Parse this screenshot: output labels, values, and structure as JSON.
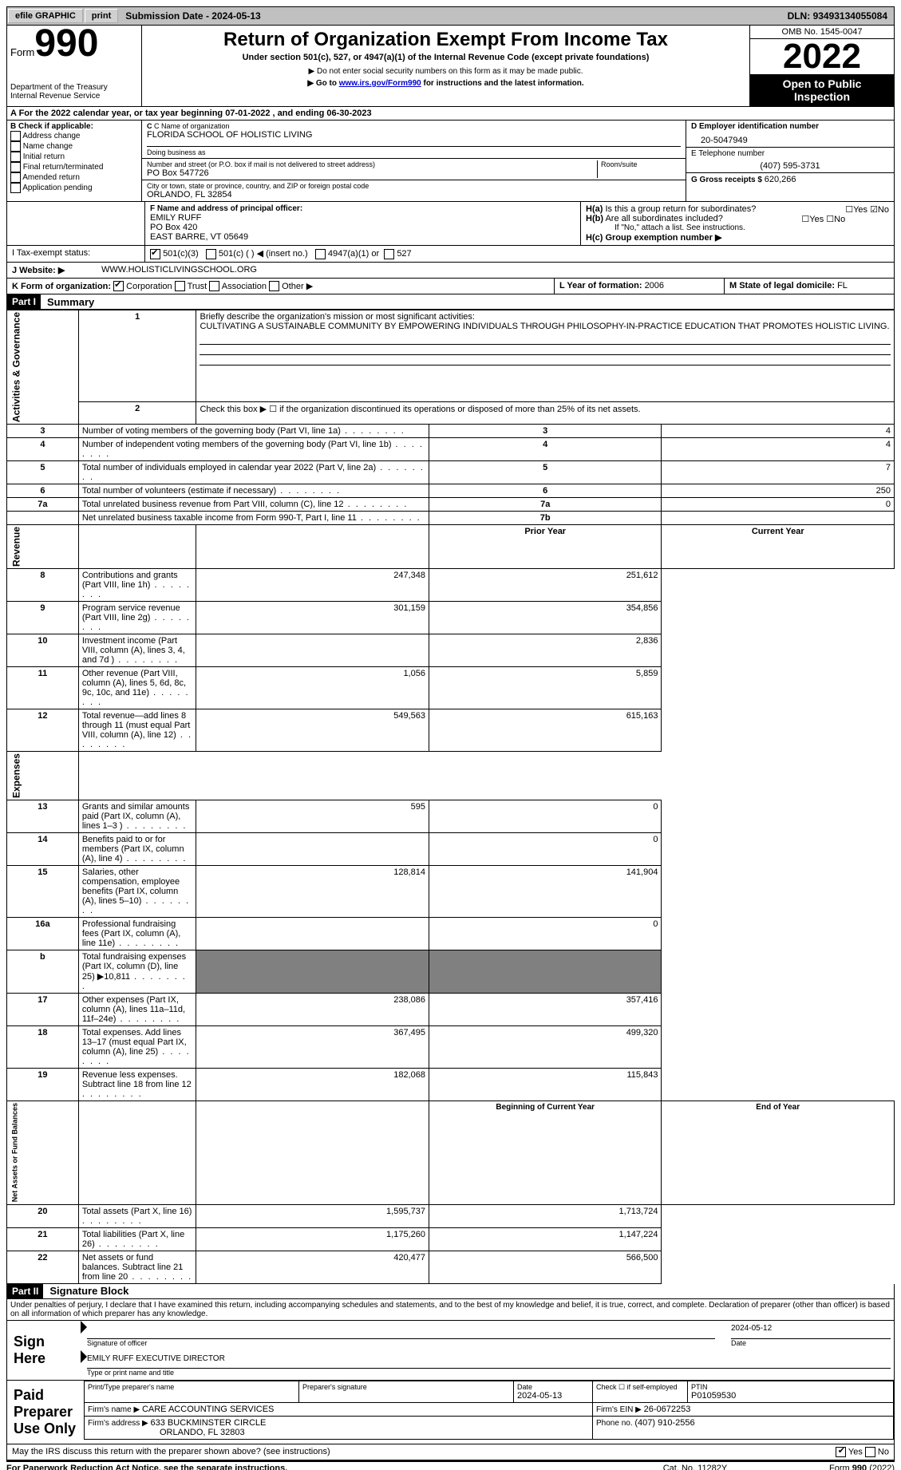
{
  "topbar": {
    "efile": "efile GRAPHIC",
    "print": "print",
    "subdate_label": "Submission Date - ",
    "subdate": "2024-05-13",
    "dln_label": "DLN: ",
    "dln": "93493134055084"
  },
  "header": {
    "form_label": "Form",
    "form_num": "990",
    "dept": "Department of the Treasury",
    "irs": "Internal Revenue Service",
    "title": "Return of Organization Exempt From Income Tax",
    "subtitle": "Under section 501(c), 527, or 4947(a)(1) of the Internal Revenue Code (except private foundations)",
    "note1": "▶ Do not enter social security numbers on this form as it may be made public.",
    "note2_pre": "▶ Go to ",
    "note2_link": "www.irs.gov/Form990",
    "note2_post": " for instructions and the latest information.",
    "omb": "OMB No. 1545-0047",
    "year": "2022",
    "inspect": "Open to Public Inspection"
  },
  "row_a": {
    "text": "A For the 2022 calendar year, or tax year beginning 07-01-2022    , and ending 06-30-2023"
  },
  "b": {
    "label": "B Check if applicable:",
    "items": [
      "Address change",
      "Name change",
      "Initial return",
      "Final return/terminated",
      "Amended return",
      "Application pending"
    ]
  },
  "c": {
    "name_lbl": "C Name of organization",
    "name": "FLORIDA SCHOOL OF HOLISTIC LIVING",
    "dba_lbl": "Doing business as",
    "dba": "",
    "addr_lbl": "Number and street (or P.O. box if mail is not delivered to street address)",
    "room_lbl": "Room/suite",
    "addr": "PO Box 547726",
    "city_lbl": "City or town, state or province, country, and ZIP or foreign postal code",
    "city": "ORLANDO, FL  32854"
  },
  "d": {
    "lbl": "D Employer identification number",
    "val": "20-5047949",
    "e_lbl": "E Telephone number",
    "e_val": "(407) 595-3731",
    "g_lbl": "G Gross receipts $ ",
    "g_val": "620,266"
  },
  "f": {
    "lbl": "F Name and address of principal officer:",
    "name": "EMILY RUFF",
    "addr1": "PO Box 420",
    "addr2": "EAST BARRE, VT  05649"
  },
  "h": {
    "a_lbl": "H(a)  Is this a group return for subordinates?",
    "b_lbl": "H(b)  Are all subordinates included?",
    "b_note": "If \"No,\" attach a list. See instructions.",
    "c_lbl": "H(c)  Group exemption number ▶"
  },
  "i": {
    "lbl": "I    Tax-exempt status:",
    "opt1": "501(c)(3)",
    "opt2": "501(c) (   ) ◀ (insert no.)",
    "opt3": "4947(a)(1) or",
    "opt4": "527"
  },
  "j": {
    "lbl": "J   Website: ▶",
    "val": "WWW.HOLISTICLIVINGSCHOOL.ORG"
  },
  "k": {
    "lbl": "K Form of organization:",
    "corp": "Corporation",
    "trust": "Trust",
    "assoc": "Association",
    "other": "Other ▶",
    "l_lbl": "L Year of formation: ",
    "l_val": "2006",
    "m_lbl": "M State of legal domicile: ",
    "m_val": "FL"
  },
  "part1": {
    "hdr": "Part I",
    "title": "Summary",
    "q1": "Briefly describe the organization's mission or most significant activities:",
    "q1_ans": "CULTIVATING A SUSTAINABLE COMMUNITY BY EMPOWERING INDIVIDUALS THROUGH PHILOSOPHY-IN-PRACTICE EDUCATION THAT PROMOTES HOLISTIC LIVING.",
    "q2": "Check this box ▶ ☐  if the organization discontinued its operations or disposed of more than 25% of its net assets.",
    "side_ag": "Activities & Governance",
    "side_rev": "Revenue",
    "side_exp": "Expenses",
    "side_net": "Net Assets or Fund Balances",
    "prior_hdr": "Prior Year",
    "curr_hdr": "Current Year",
    "begin_hdr": "Beginning of Current Year",
    "end_hdr": "End of Year",
    "rows_gov": [
      {
        "n": "3",
        "t": "Number of voting members of the governing body (Part VI, line 1a)",
        "box": "3",
        "v": "4"
      },
      {
        "n": "4",
        "t": "Number of independent voting members of the governing body (Part VI, line 1b)",
        "box": "4",
        "v": "4"
      },
      {
        "n": "5",
        "t": "Total number of individuals employed in calendar year 2022 (Part V, line 2a)",
        "box": "5",
        "v": "7"
      },
      {
        "n": "6",
        "t": "Total number of volunteers (estimate if necessary)",
        "box": "6",
        "v": "250"
      },
      {
        "n": "7a",
        "t": "Total unrelated business revenue from Part VIII, column (C), line 12",
        "box": "7a",
        "v": "0"
      },
      {
        "n": " ",
        "t": "Net unrelated business taxable income from Form 990-T, Part I, line 11",
        "box": "7b",
        "v": ""
      }
    ],
    "rows_rev": [
      {
        "n": "8",
        "t": "Contributions and grants (Part VIII, line 1h)",
        "p": "247,348",
        "c": "251,612"
      },
      {
        "n": "9",
        "t": "Program service revenue (Part VIII, line 2g)",
        "p": "301,159",
        "c": "354,856"
      },
      {
        "n": "10",
        "t": "Investment income (Part VIII, column (A), lines 3, 4, and 7d )",
        "p": "",
        "c": "2,836"
      },
      {
        "n": "11",
        "t": "Other revenue (Part VIII, column (A), lines 5, 6d, 8c, 9c, 10c, and 11e)",
        "p": "1,056",
        "c": "5,859"
      },
      {
        "n": "12",
        "t": "Total revenue—add lines 8 through 11 (must equal Part VIII, column (A), line 12)",
        "p": "549,563",
        "c": "615,163"
      }
    ],
    "rows_exp": [
      {
        "n": "13",
        "t": "Grants and similar amounts paid (Part IX, column (A), lines 1–3 )",
        "p": "595",
        "c": "0"
      },
      {
        "n": "14",
        "t": "Benefits paid to or for members (Part IX, column (A), line 4)",
        "p": "",
        "c": "0"
      },
      {
        "n": "15",
        "t": "Salaries, other compensation, employee benefits (Part IX, column (A), lines 5–10)",
        "p": "128,814",
        "c": "141,904"
      },
      {
        "n": "16a",
        "t": "Professional fundraising fees (Part IX, column (A), line 11e)",
        "p": "",
        "c": "0"
      },
      {
        "n": "b",
        "t": "Total fundraising expenses (Part IX, column (D), line 25) ▶10,811",
        "p": "GREY",
        "c": "GREY"
      },
      {
        "n": "17",
        "t": "Other expenses (Part IX, column (A), lines 11a–11d, 11f–24e)",
        "p": "238,086",
        "c": "357,416"
      },
      {
        "n": "18",
        "t": "Total expenses. Add lines 13–17 (must equal Part IX, column (A), line 25)",
        "p": "367,495",
        "c": "499,320"
      },
      {
        "n": "19",
        "t": "Revenue less expenses. Subtract line 18 from line 12",
        "p": "182,068",
        "c": "115,843"
      }
    ],
    "rows_net": [
      {
        "n": "20",
        "t": "Total assets (Part X, line 16)",
        "p": "1,595,737",
        "c": "1,713,724"
      },
      {
        "n": "21",
        "t": "Total liabilities (Part X, line 26)",
        "p": "1,175,260",
        "c": "1,147,224"
      },
      {
        "n": "22",
        "t": "Net assets or fund balances. Subtract line 21 from line 20",
        "p": "420,477",
        "c": "566,500"
      }
    ]
  },
  "part2": {
    "hdr": "Part II",
    "title": "Signature Block",
    "decl": "Under penalties of perjury, I declare that I have examined this return, including accompanying schedules and statements, and to the best of my knowledge and belief, it is true, correct, and complete. Declaration of preparer (other than officer) is based on all information of which preparer has any knowledge.",
    "sign_here": "Sign Here",
    "sig_officer": "Signature of officer",
    "sig_date": "2024-05-12",
    "date_lbl": "Date",
    "officer_name": "EMILY RUFF  EXECUTIVE DIRECTOR",
    "type_name": "Type or print name and title",
    "paid": "Paid Preparer Use Only",
    "prep_name_lbl": "Print/Type preparer's name",
    "prep_sig_lbl": "Preparer's signature",
    "prep_date_lbl": "Date",
    "prep_date": "2024-05-13",
    "prep_check": "Check ☐ if self-employed",
    "ptin_lbl": "PTIN",
    "ptin": "P01059530",
    "firm_name_lbl": "Firm's name    ▶ ",
    "firm_name": "CARE ACCOUNTING SERVICES",
    "firm_ein_lbl": "Firm's EIN ▶ ",
    "firm_ein": "26-0672253",
    "firm_addr_lbl": "Firm's address ▶ ",
    "firm_addr1": "633 BUCKMINSTER CIRCLE",
    "firm_addr2": "ORLANDO, FL  32803",
    "firm_phone_lbl": "Phone no. ",
    "firm_phone": "(407) 910-2556",
    "discuss": "May the IRS discuss this return with the preparer shown above? (see instructions)"
  },
  "footer": {
    "pra": "For Paperwork Reduction Act Notice, see the separate instructions.",
    "cat": "Cat. No. 11282Y",
    "form": "Form 990 (2022)"
  }
}
